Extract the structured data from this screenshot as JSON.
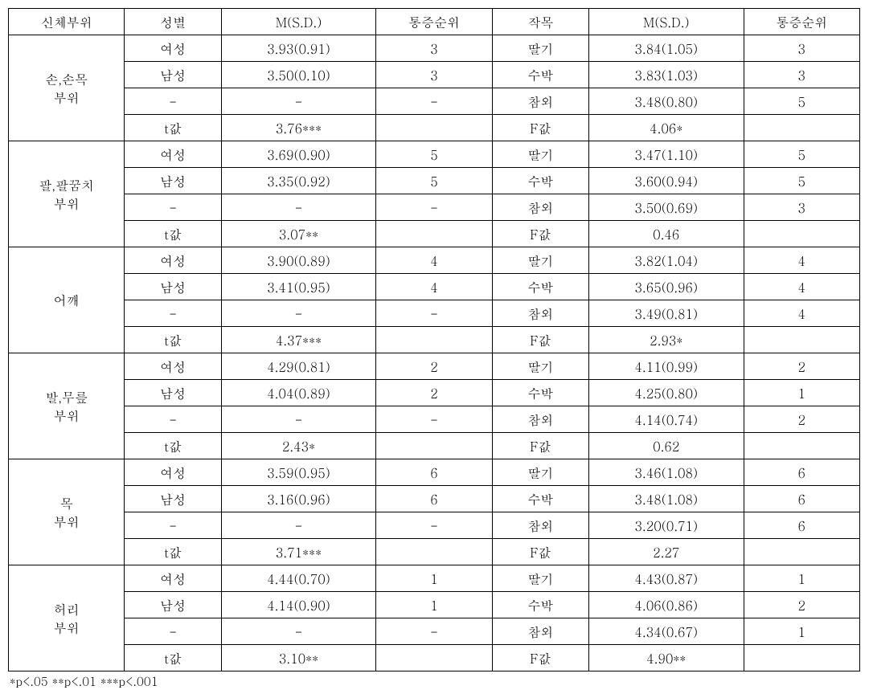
{
  "headers": {
    "body_part": "신체부위",
    "gender": "성별",
    "msd1": "M(S.D.)",
    "rank1": "통증순위",
    "crop": "작목",
    "msd2": "M(S.D.)",
    "rank2": "통증순위"
  },
  "labels": {
    "female": "여성",
    "male": "남성",
    "dash": "-",
    "tval": "t값",
    "strawberry": "딸기",
    "watermelon": "수박",
    "melon": "참외",
    "fval": "F값"
  },
  "groups": [
    {
      "part_line1": "손,손목",
      "part_line2": "부위",
      "rows": [
        {
          "gender": "여성",
          "msd1": "3.93(0.91)",
          "rank1": "3",
          "crop": "딸기",
          "msd2": "3.84(1.05)",
          "rank2": "3"
        },
        {
          "gender": "남성",
          "msd1": "3.50(0.10)",
          "rank1": "3",
          "crop": "수박",
          "msd2": "3.83(1.03)",
          "rank2": "3"
        },
        {
          "gender": "-",
          "msd1": "-",
          "rank1": "-",
          "crop": "참외",
          "msd2": "3.48(0.80)",
          "rank2": "5"
        },
        {
          "gender": "t값",
          "msd1": "3.76***",
          "rank1": "",
          "crop": "F값",
          "msd2": "4.06*",
          "rank2": ""
        }
      ]
    },
    {
      "part_line1": "팔,팔꿈치",
      "part_line2": "부위",
      "rows": [
        {
          "gender": "여성",
          "msd1": "3.69(0.90)",
          "rank1": "5",
          "crop": "딸기",
          "msd2": "3.47(1.10)",
          "rank2": "5"
        },
        {
          "gender": "남성",
          "msd1": "3.35(0.92)",
          "rank1": "5",
          "crop": "수박",
          "msd2": "3.60(0.94)",
          "rank2": "5"
        },
        {
          "gender": "-",
          "msd1": "-",
          "rank1": "-",
          "crop": "참외",
          "msd2": "3.50(0.69)",
          "rank2": "3"
        },
        {
          "gender": "t값",
          "msd1": "3.07**",
          "rank1": "",
          "crop": "F값",
          "msd2": "0.46",
          "rank2": ""
        }
      ]
    },
    {
      "part_line1": "어깨",
      "part_line2": "",
      "rows": [
        {
          "gender": "여성",
          "msd1": "3.90(0.89)",
          "rank1": "4",
          "crop": "딸기",
          "msd2": "3.82(1.04)",
          "rank2": "4"
        },
        {
          "gender": "남성",
          "msd1": "3.41(0.95)",
          "rank1": "4",
          "crop": "수박",
          "msd2": "3.65(0.96)",
          "rank2": "4"
        },
        {
          "gender": "-",
          "msd1": "-",
          "rank1": "-",
          "crop": "참외",
          "msd2": "3.49(0.81)",
          "rank2": "4"
        },
        {
          "gender": "t값",
          "msd1": "4.37***",
          "rank1": "",
          "crop": "F값",
          "msd2": "2.93*",
          "rank2": ""
        }
      ]
    },
    {
      "part_line1": "발,무릎",
      "part_line2": "부위",
      "rows": [
        {
          "gender": "여성",
          "msd1": "4.29(0.81)",
          "rank1": "2",
          "crop": "딸기",
          "msd2": "4.11(0.99)",
          "rank2": "2"
        },
        {
          "gender": "남성",
          "msd1": "4.04(0.89)",
          "rank1": "2",
          "crop": "수박",
          "msd2": "4.25(0.80)",
          "rank2": "1"
        },
        {
          "gender": "-",
          "msd1": "-",
          "rank1": "-",
          "crop": "참외",
          "msd2": "4.14(0.74)",
          "rank2": "2"
        },
        {
          "gender": "t값",
          "msd1": "2.43*",
          "rank1": "",
          "crop": "F값",
          "msd2": "0.62",
          "rank2": ""
        }
      ]
    },
    {
      "part_line1": "목",
      "part_line2": "부위",
      "rows": [
        {
          "gender": "여성",
          "msd1": "3.59(0.95)",
          "rank1": "6",
          "crop": "딸기",
          "msd2": "3.46(1.08)",
          "rank2": "6"
        },
        {
          "gender": "남성",
          "msd1": "3.16(0.96)",
          "rank1": "6",
          "crop": "수박",
          "msd2": "3.48(1.08)",
          "rank2": "6"
        },
        {
          "gender": "-",
          "msd1": "-",
          "rank1": "-",
          "crop": "참외",
          "msd2": "3.20(0.71)",
          "rank2": "6"
        },
        {
          "gender": "t값",
          "msd1": "3.71***",
          "rank1": "",
          "crop": "F값",
          "msd2": "2.27",
          "rank2": ""
        }
      ]
    },
    {
      "part_line1": "허리",
      "part_line2": "부위",
      "rows": [
        {
          "gender": "여성",
          "msd1": "4.44(0.70)",
          "rank1": "1",
          "crop": "딸기",
          "msd2": "4.43(0.87)",
          "rank2": "1"
        },
        {
          "gender": "남성",
          "msd1": "4.14(0.90)",
          "rank1": "1",
          "crop": "수박",
          "msd2": "4.06(0.86)",
          "rank2": "2"
        },
        {
          "gender": "-",
          "msd1": "-",
          "rank1": "-",
          "crop": "참외",
          "msd2": "4.34(0.67)",
          "rank2": "1"
        },
        {
          "gender": "t값",
          "msd1": "3.10**",
          "rank1": "",
          "crop": "F값",
          "msd2": "4.90**",
          "rank2": ""
        }
      ]
    }
  ],
  "footnote": "*p<.05   **p<.01   ***p<.001"
}
